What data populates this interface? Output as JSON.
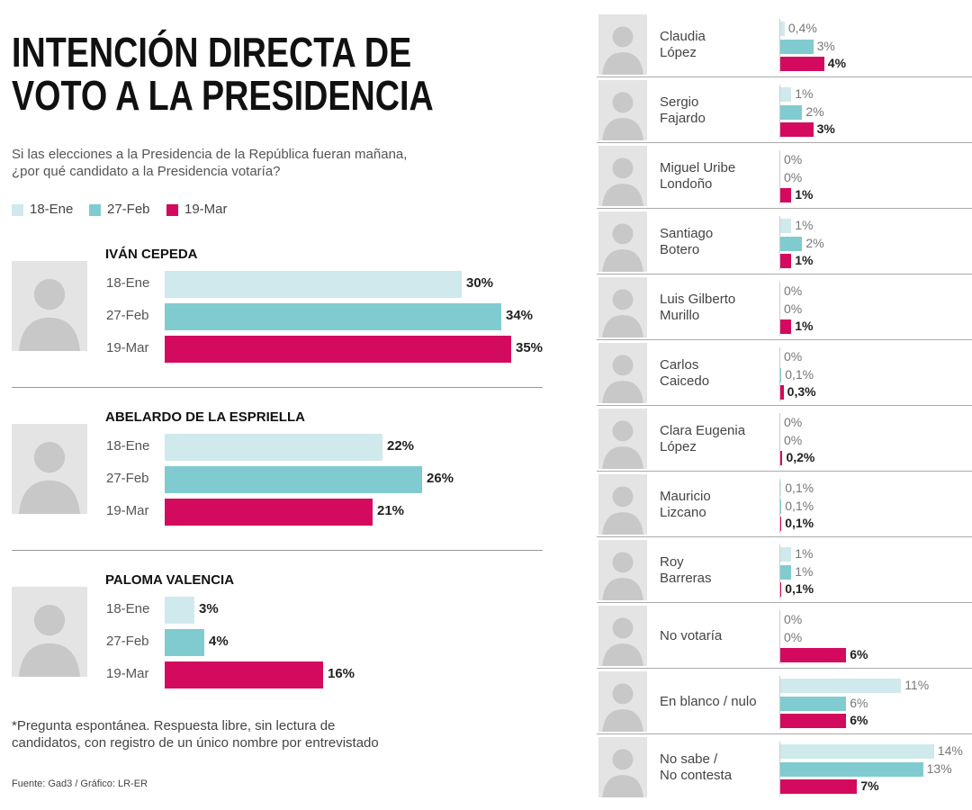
{
  "chart_data": [
    {
      "type": "bar",
      "title": "INTENCIÓN DIRECTA DE\nVOTO A LA PRESIDENCIA",
      "subtitle": "Si las elecciones a la Presidencia de la República fueran mañana,\n¿por qué candidato a la Presidencia votaría?",
      "categories": [
        "IVÁN CEPEDA",
        "ABELARDO DE LA ESPRIELLA",
        "PALOMA VALENCIA"
      ],
      "series": [
        {
          "name": "18-Ene",
          "color": "#cfe9ec",
          "values": [
            30,
            22,
            3
          ],
          "value_labels": [
            "30%",
            "22%",
            "3%"
          ]
        },
        {
          "name": "27-Feb",
          "color": "#80cbd0",
          "values": [
            34,
            26,
            4
          ],
          "value_labels": [
            "34%",
            "26%",
            "4%"
          ]
        },
        {
          "name": "19-Mar",
          "color": "#d40a5e",
          "values": [
            35,
            21,
            16
          ],
          "value_labels": [
            "35%",
            "21%",
            "16%"
          ]
        }
      ],
      "note": "*Pregunta espontánea. Respuesta libre, sin lectura de\ncandidatos, con registro de un único nombre por entrevistado",
      "source": "Fuente: Gad3 / Gráfico: LR-ER"
    },
    {
      "type": "bar",
      "categories": [
        "Claudia\nLópez",
        "Sergio\nFajardo",
        "Miguel Uribe\nLondoño",
        "Santiago\nBotero",
        "Luis Gilberto\nMurillo",
        "Carlos\nCaicedo",
        "Clara Eugenia\nLópez",
        "Mauricio\nLizcano",
        "Roy\nBarreras",
        "No votaría",
        "En blanco / nulo",
        "No sabe /\nNo contesta"
      ],
      "series": [
        {
          "color": "#cfe9ec",
          "values": [
            0.4,
            1,
            0,
            1,
            0,
            0,
            0,
            0.1,
            1,
            0,
            11,
            14
          ],
          "value_labels": [
            "0,4%",
            "1%",
            "0%",
            "1%",
            "0%",
            "0%",
            "0%",
            "0,1%",
            "1%",
            "0%",
            "11%",
            "14%"
          ]
        },
        {
          "color": "#80cbd0",
          "values": [
            3,
            2,
            0,
            2,
            0,
            0.1,
            0,
            0.1,
            1,
            0,
            6,
            13
          ],
          "value_labels": [
            "3%",
            "2%",
            "0%",
            "2%",
            "0%",
            "0,1%",
            "0%",
            "0,1%",
            "1%",
            "0%",
            "6%",
            "13%"
          ]
        },
        {
          "color": "#d40a5e",
          "values": [
            4,
            3,
            1,
            1,
            1,
            0.3,
            0.2,
            0.1,
            0.1,
            6,
            6,
            7
          ],
          "value_labels": [
            "4%",
            "3%",
            "1%",
            "1%",
            "1%",
            "0,3%",
            "0,2%",
            "0,1%",
            "0,1%",
            "6%",
            "6%",
            "7%"
          ]
        }
      ]
    }
  ]
}
